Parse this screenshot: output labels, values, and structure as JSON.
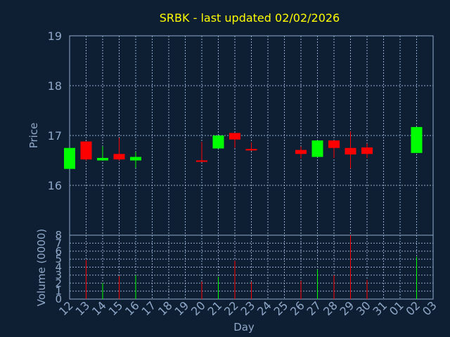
{
  "chart_data": [
    {
      "type": "candlestick",
      "title": "SRBK - last updated 02/02/2026",
      "ylabel": "Price",
      "ylim": [
        15.0,
        19.0
      ],
      "yticks": [
        16,
        17,
        18,
        19
      ],
      "grid": true,
      "up_color": "#00ff00",
      "down_color": "#ff0000",
      "x_ticks": [
        "12",
        "13",
        "14",
        "15",
        "16",
        "17",
        "18",
        "19",
        "20",
        "21",
        "22",
        "23",
        "24",
        "25",
        "26",
        "27",
        "28",
        "29",
        "30",
        "31",
        "01",
        "02",
        "03"
      ],
      "candles": [
        {
          "x": "12",
          "open": 16.33,
          "high": 16.75,
          "low": 16.33,
          "close": 16.75
        },
        {
          "x": "13",
          "open": 16.88,
          "high": 16.88,
          "low": 16.5,
          "close": 16.52
        },
        {
          "x": "14",
          "open": 16.5,
          "high": 16.78,
          "low": 16.5,
          "close": 16.55
        },
        {
          "x": "15",
          "open": 16.63,
          "high": 16.95,
          "low": 16.5,
          "close": 16.52
        },
        {
          "x": "16",
          "open": 16.5,
          "high": 16.67,
          "low": 16.35,
          "close": 16.57
        },
        {
          "x": "20",
          "open": 16.5,
          "high": 16.87,
          "low": 16.47,
          "close": 16.49
        },
        {
          "x": "21",
          "open": 16.74,
          "high": 17.0,
          "low": 16.74,
          "close": 17.0
        },
        {
          "x": "22",
          "open": 17.05,
          "high": 17.05,
          "low": 16.75,
          "close": 16.92
        },
        {
          "x": "23",
          "open": 16.73,
          "high": 16.86,
          "low": 16.69,
          "close": 16.7
        },
        {
          "x": "26",
          "open": 16.71,
          "high": 16.78,
          "low": 16.54,
          "close": 16.63
        },
        {
          "x": "27",
          "open": 16.57,
          "high": 16.9,
          "low": 16.57,
          "close": 16.9
        },
        {
          "x": "28",
          "open": 16.9,
          "high": 16.9,
          "low": 16.55,
          "close": 16.75
        },
        {
          "x": "29",
          "open": 16.75,
          "high": 17.08,
          "low": 16.34,
          "close": 16.62
        },
        {
          "x": "30",
          "open": 16.76,
          "high": 16.84,
          "low": 16.55,
          "close": 16.63
        },
        {
          "x": "02",
          "open": 16.65,
          "high": 17.17,
          "low": 16.65,
          "close": 17.17
        }
      ]
    },
    {
      "type": "bar",
      "ylabel": "Volume (0000)",
      "xlabel": "Day",
      "ylim": [
        0,
        8
      ],
      "yticks": [
        0,
        1,
        2,
        3,
        4,
        5,
        6,
        7,
        8
      ],
      "categories": [
        "12",
        "13",
        "14",
        "15",
        "16",
        "20",
        "21",
        "22",
        "23",
        "26",
        "27",
        "28",
        "29",
        "30",
        "02"
      ],
      "values": [
        0,
        4.9,
        2.0,
        2.9,
        3.0,
        2.2,
        2.8,
        4.8,
        2.2,
        2.3,
        3.7,
        3.0,
        8.0,
        2.4,
        5.3
      ]
    }
  ]
}
